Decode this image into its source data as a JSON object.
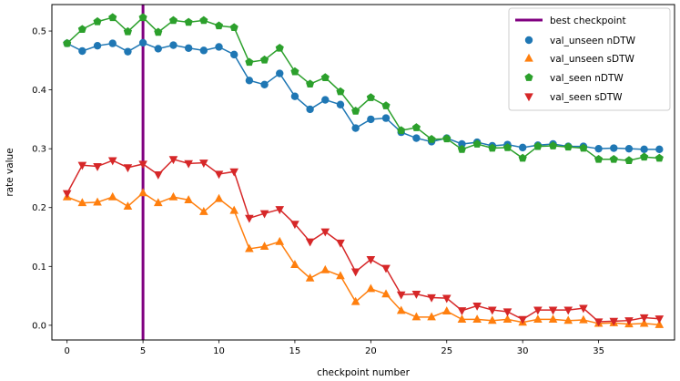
{
  "chart_data": {
    "type": "line",
    "title": "",
    "xlabel": "checkpoint number",
    "ylabel": "rate value",
    "xlim": [
      -1,
      40
    ],
    "ylim": [
      -0.025,
      0.545
    ],
    "x_ticks": [
      0,
      5,
      10,
      15,
      20,
      25,
      30,
      35
    ],
    "y_ticks": [
      0.0,
      0.1,
      0.2,
      0.3,
      0.4,
      0.5
    ],
    "x_tick_labels": [
      "0",
      "5",
      "10",
      "15",
      "20",
      "25",
      "30",
      "35"
    ],
    "y_tick_labels": [
      "0.0",
      "0.1",
      "0.2",
      "0.3",
      "0.4",
      "0.5"
    ],
    "grid": false,
    "legend_position": "top-right",
    "best_checkpoint": {
      "name": "best checkpoint",
      "x": 5,
      "color": "#800080"
    },
    "x": [
      0,
      1,
      2,
      3,
      4,
      5,
      6,
      7,
      8,
      9,
      10,
      11,
      12,
      13,
      14,
      15,
      16,
      17,
      18,
      19,
      20,
      21,
      22,
      23,
      24,
      25,
      26,
      27,
      28,
      29,
      30,
      31,
      32,
      33,
      34,
      35,
      36,
      37,
      38,
      39
    ],
    "series": [
      {
        "name": "val_unseen nDTW",
        "color": "#1f77b4",
        "marker": "circle",
        "values": [
          0.479,
          0.466,
          0.475,
          0.479,
          0.465,
          0.48,
          0.47,
          0.476,
          0.471,
          0.467,
          0.473,
          0.46,
          0.416,
          0.409,
          0.428,
          0.389,
          0.367,
          0.383,
          0.375,
          0.335,
          0.35,
          0.352,
          0.328,
          0.318,
          0.312,
          0.318,
          0.308,
          0.311,
          0.305,
          0.307,
          0.302,
          0.306,
          0.308,
          0.304,
          0.304,
          0.3,
          0.301,
          0.3,
          0.299,
          0.299
        ]
      },
      {
        "name": "val_unseen sDTW",
        "color": "#ff7f0e",
        "marker": "triangle-up",
        "values": [
          0.218,
          0.208,
          0.209,
          0.218,
          0.202,
          0.225,
          0.208,
          0.218,
          0.213,
          0.193,
          0.215,
          0.195,
          0.13,
          0.134,
          0.142,
          0.103,
          0.08,
          0.094,
          0.084,
          0.04,
          0.062,
          0.053,
          0.025,
          0.014,
          0.014,
          0.024,
          0.01,
          0.01,
          0.008,
          0.01,
          0.005,
          0.01,
          0.01,
          0.008,
          0.009,
          0.003,
          0.004,
          0.002,
          0.003,
          0.001
        ]
      },
      {
        "name": "val_seen nDTW",
        "color": "#2ca02c",
        "marker": "pentagon",
        "values": [
          0.479,
          0.503,
          0.516,
          0.523,
          0.499,
          0.523,
          0.498,
          0.518,
          0.515,
          0.518,
          0.509,
          0.506,
          0.447,
          0.451,
          0.471,
          0.431,
          0.41,
          0.421,
          0.397,
          0.364,
          0.387,
          0.373,
          0.331,
          0.336,
          0.316,
          0.317,
          0.299,
          0.308,
          0.301,
          0.302,
          0.284,
          0.304,
          0.305,
          0.303,
          0.301,
          0.282,
          0.282,
          0.28,
          0.286,
          0.284
        ]
      },
      {
        "name": "val_seen sDTW",
        "color": "#d62728",
        "marker": "triangle-down",
        "values": [
          0.224,
          0.272,
          0.27,
          0.28,
          0.268,
          0.274,
          0.256,
          0.282,
          0.275,
          0.276,
          0.257,
          0.261,
          0.182,
          0.19,
          0.197,
          0.172,
          0.142,
          0.159,
          0.14,
          0.091,
          0.112,
          0.097,
          0.052,
          0.053,
          0.047,
          0.046,
          0.025,
          0.033,
          0.026,
          0.023,
          0.01,
          0.026,
          0.026,
          0.026,
          0.029,
          0.006,
          0.007,
          0.008,
          0.013,
          0.011
        ]
      }
    ]
  }
}
